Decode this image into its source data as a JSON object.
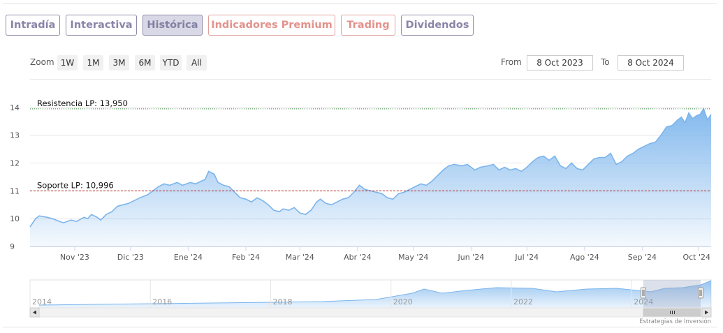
{
  "tabs": [
    {
      "label": "Intradía",
      "state": "normal"
    },
    {
      "label": "Interactiva",
      "state": "normal"
    },
    {
      "label": "Histórica",
      "state": "active"
    },
    {
      "label": "Indicadores Premium",
      "state": "premium"
    },
    {
      "label": "Trading",
      "state": "premium"
    },
    {
      "label": "Dividendos",
      "state": "normal"
    }
  ],
  "range_selector": {
    "zoom_label": "Zoom",
    "buttons": [
      "1W",
      "1M",
      "3M",
      "6M",
      "YTD",
      "All"
    ],
    "from_label": "From",
    "from_value": "8 Oct 2023",
    "to_label": "To",
    "to_value": "8 Oct 2024"
  },
  "credits": "Estrategias de Inversión",
  "colors": {
    "tab_border": "#8f8aa8",
    "tab_text": "#8a85a8",
    "tab_active_bg": "#d9d8e6",
    "premium_text": "#e2938c",
    "series_line": "#7cb5ec",
    "resistance_line": "#2e7d32",
    "support_line": "#b71c1c"
  },
  "chart_data": {
    "type": "area",
    "title": "",
    "xlabel": "",
    "ylabel": "",
    "grid": true,
    "ylim": [
      9,
      14
    ],
    "yticks": [
      9,
      10,
      11,
      12,
      13,
      14
    ],
    "xlim": [
      "2023-10-08",
      "2024-10-08"
    ],
    "xticks": [
      {
        "date": "2023-11-01",
        "label": "Nov '23"
      },
      {
        "date": "2023-12-01",
        "label": "Dic '23"
      },
      {
        "date": "2024-01-01",
        "label": "Ene '24"
      },
      {
        "date": "2024-02-01",
        "label": "Feb '24"
      },
      {
        "date": "2024-03-01",
        "label": "Mar '24"
      },
      {
        "date": "2024-04-01",
        "label": "Abr '24"
      },
      {
        "date": "2024-05-01",
        "label": "May '24"
      },
      {
        "date": "2024-06-01",
        "label": "Jun '24"
      },
      {
        "date": "2024-07-01",
        "label": "Jul '24"
      },
      {
        "date": "2024-08-01",
        "label": "Ago '24"
      },
      {
        "date": "2024-09-01",
        "label": "Sep '24"
      },
      {
        "date": "2024-10-01",
        "label": "Oct '24"
      }
    ],
    "plot_lines": [
      {
        "label": "Resistencia LP: 13,950",
        "value": 13.95,
        "style": "dotted",
        "color": "#2e7d32"
      },
      {
        "label": "Soporte LP: 10,996",
        "value": 10.996,
        "style": "dashed",
        "color": "#b71c1c"
      }
    ],
    "series": [
      {
        "points": [
          [
            "2023-10-08",
            9.7
          ],
          [
            "2023-10-11",
            10.0
          ],
          [
            "2023-10-13",
            10.1
          ],
          [
            "2023-10-17",
            10.05
          ],
          [
            "2023-10-20",
            10.0
          ],
          [
            "2023-10-24",
            9.9
          ],
          [
            "2023-10-26",
            9.85
          ],
          [
            "2023-10-30",
            9.95
          ],
          [
            "2023-11-02",
            9.9
          ],
          [
            "2023-11-06",
            10.05
          ],
          [
            "2023-11-08",
            10.0
          ],
          [
            "2023-11-10",
            10.15
          ],
          [
            "2023-11-13",
            10.05
          ],
          [
            "2023-11-15",
            9.95
          ],
          [
            "2023-11-18",
            10.15
          ],
          [
            "2023-11-21",
            10.25
          ],
          [
            "2023-11-24",
            10.45
          ],
          [
            "2023-11-27",
            10.5
          ],
          [
            "2023-11-30",
            10.55
          ],
          [
            "2023-12-03",
            10.65
          ],
          [
            "2023-12-06",
            10.75
          ],
          [
            "2023-12-10",
            10.85
          ],
          [
            "2023-12-13",
            11.0
          ],
          [
            "2023-12-16",
            11.15
          ],
          [
            "2023-12-19",
            11.25
          ],
          [
            "2023-12-22",
            11.2
          ],
          [
            "2023-12-26",
            11.3
          ],
          [
            "2023-12-29",
            11.2
          ],
          [
            "2024-01-02",
            11.3
          ],
          [
            "2024-01-05",
            11.25
          ],
          [
            "2024-01-08",
            11.35
          ],
          [
            "2024-01-10",
            11.4
          ],
          [
            "2024-01-12",
            11.7
          ],
          [
            "2024-01-15",
            11.6
          ],
          [
            "2024-01-17",
            11.3
          ],
          [
            "2024-01-20",
            11.2
          ],
          [
            "2024-01-23",
            11.15
          ],
          [
            "2024-01-26",
            10.95
          ],
          [
            "2024-01-29",
            10.75
          ],
          [
            "2024-02-01",
            10.7
          ],
          [
            "2024-02-04",
            10.6
          ],
          [
            "2024-02-07",
            10.75
          ],
          [
            "2024-02-10",
            10.65
          ],
          [
            "2024-02-13",
            10.5
          ],
          [
            "2024-02-16",
            10.3
          ],
          [
            "2024-02-19",
            10.25
          ],
          [
            "2024-02-21",
            10.35
          ],
          [
            "2024-02-24",
            10.3
          ],
          [
            "2024-02-27",
            10.4
          ],
          [
            "2024-03-01",
            10.2
          ],
          [
            "2024-03-04",
            10.15
          ],
          [
            "2024-03-07",
            10.3
          ],
          [
            "2024-03-10",
            10.6
          ],
          [
            "2024-03-12",
            10.7
          ],
          [
            "2024-03-15",
            10.55
          ],
          [
            "2024-03-18",
            10.5
          ],
          [
            "2024-03-21",
            10.6
          ],
          [
            "2024-03-24",
            10.7
          ],
          [
            "2024-03-27",
            10.75
          ],
          [
            "2024-03-30",
            10.95
          ],
          [
            "2024-04-02",
            11.2
          ],
          [
            "2024-04-05",
            11.05
          ],
          [
            "2024-04-08",
            11.0
          ],
          [
            "2024-04-11",
            10.95
          ],
          [
            "2024-04-14",
            10.9
          ],
          [
            "2024-04-17",
            10.75
          ],
          [
            "2024-04-20",
            10.7
          ],
          [
            "2024-04-23",
            10.9
          ],
          [
            "2024-04-26",
            10.95
          ],
          [
            "2024-04-29",
            11.05
          ],
          [
            "2024-05-02",
            11.15
          ],
          [
            "2024-05-05",
            11.25
          ],
          [
            "2024-05-08",
            11.2
          ],
          [
            "2024-05-11",
            11.35
          ],
          [
            "2024-05-14",
            11.55
          ],
          [
            "2024-05-17",
            11.75
          ],
          [
            "2024-05-20",
            11.9
          ],
          [
            "2024-05-23",
            11.95
          ],
          [
            "2024-05-27",
            11.9
          ],
          [
            "2024-05-30",
            11.95
          ],
          [
            "2024-06-03",
            11.75
          ],
          [
            "2024-06-06",
            11.85
          ],
          [
            "2024-06-10",
            11.9
          ],
          [
            "2024-06-13",
            11.95
          ],
          [
            "2024-06-16",
            11.75
          ],
          [
            "2024-06-19",
            11.85
          ],
          [
            "2024-06-22",
            11.75
          ],
          [
            "2024-06-25",
            11.8
          ],
          [
            "2024-06-28",
            11.7
          ],
          [
            "2024-07-01",
            11.85
          ],
          [
            "2024-07-04",
            12.05
          ],
          [
            "2024-07-07",
            12.2
          ],
          [
            "2024-07-10",
            12.25
          ],
          [
            "2024-07-13",
            12.1
          ],
          [
            "2024-07-16",
            12.25
          ],
          [
            "2024-07-19",
            11.9
          ],
          [
            "2024-07-22",
            11.8
          ],
          [
            "2024-07-25",
            12.0
          ],
          [
            "2024-07-28",
            11.8
          ],
          [
            "2024-07-31",
            11.75
          ],
          [
            "2024-08-03",
            11.95
          ],
          [
            "2024-08-06",
            12.15
          ],
          [
            "2024-08-09",
            12.2
          ],
          [
            "2024-08-12",
            12.2
          ],
          [
            "2024-08-15",
            12.35
          ],
          [
            "2024-08-18",
            11.95
          ],
          [
            "2024-08-21",
            12.05
          ],
          [
            "2024-08-24",
            12.25
          ],
          [
            "2024-08-27",
            12.35
          ],
          [
            "2024-08-30",
            12.5
          ],
          [
            "2024-09-02",
            12.6
          ],
          [
            "2024-09-05",
            12.7
          ],
          [
            "2024-09-08",
            12.75
          ],
          [
            "2024-09-11",
            13.0
          ],
          [
            "2024-09-14",
            13.3
          ],
          [
            "2024-09-17",
            13.35
          ],
          [
            "2024-09-20",
            13.55
          ],
          [
            "2024-09-22",
            13.65
          ],
          [
            "2024-09-24",
            13.45
          ],
          [
            "2024-09-26",
            13.8
          ],
          [
            "2024-09-28",
            13.6
          ],
          [
            "2024-09-30",
            13.7
          ],
          [
            "2024-10-02",
            13.75
          ],
          [
            "2024-10-04",
            13.95
          ],
          [
            "2024-10-06",
            13.55
          ],
          [
            "2024-10-08",
            13.75
          ]
        ]
      }
    ],
    "navigator": {
      "xticks": [
        "2014",
        "2016",
        "2018",
        "2020",
        "2022",
        "2024"
      ],
      "selected_range": [
        "2023-10-08",
        "2024-10-08"
      ]
    }
  }
}
